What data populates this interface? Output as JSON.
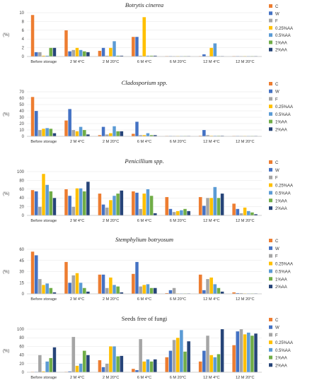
{
  "colors": {
    "C": "#ED7D31",
    "W": "#4472C4",
    "F": "#A5A5A5",
    "0.25%AA": "#FFC000",
    "0.5%AA": "#5B9BD5",
    "1%AA": "#70AD47",
    "2%AA": "#264478"
  },
  "chart_data": [
    {
      "type": "bar",
      "title": "Botrytis cinerea",
      "italic_title": true,
      "ylabel": "(%)",
      "ylim": [
        0,
        10
      ],
      "yticks": [
        0,
        2,
        4,
        6,
        8,
        10
      ],
      "categories": [
        "Before storage",
        "2 M 4°C",
        "2 M 20°C",
        "6 M 4°C",
        "6 M 20°C",
        "12 M 4°C",
        "12 M 20°C"
      ],
      "series": [
        {
          "name": "C",
          "values": [
            9.5,
            6.0,
            1.3,
            4.5,
            0.1,
            0.1,
            0.1
          ]
        },
        {
          "name": "W",
          "values": [
            1.0,
            1.2,
            2.0,
            4.5,
            0.1,
            0.5,
            0.1
          ]
        },
        {
          "name": "F",
          "values": [
            1.0,
            1.5,
            0.2,
            0.2,
            0.1,
            0.1,
            0.1
          ]
        },
        {
          "name": "0.25%AA",
          "values": [
            0.2,
            2.0,
            2.0,
            9.0,
            0.1,
            2.0,
            0.1
          ]
        },
        {
          "name": "0.5%AA",
          "values": [
            0.2,
            1.5,
            3.5,
            0.2,
            0.1,
            3.0,
            0.1
          ]
        },
        {
          "name": "1%AA",
          "values": [
            2.0,
            1.2,
            0.2,
            0.2,
            0.1,
            0.1,
            0.1
          ]
        },
        {
          "name": "2%AA",
          "values": [
            2.0,
            1.0,
            0.2,
            0.2,
            0.1,
            0.1,
            0.1
          ]
        }
      ]
    },
    {
      "type": "bar",
      "title": "Cladosporium spp.",
      "italic_title": true,
      "ylabel": "(%)",
      "ylim": [
        0,
        70
      ],
      "yticks": [
        0,
        10,
        20,
        30,
        40,
        50,
        60,
        70
      ],
      "categories": [
        "Before storage",
        "2 M 4°C",
        "2 M 20°C",
        "6 M 4°C",
        "6 M 20°C",
        "12 M 4°C",
        "12 M 20°C"
      ],
      "series": [
        {
          "name": "C",
          "values": [
            62,
            25,
            2,
            4,
            0.5,
            1,
            0.5
          ]
        },
        {
          "name": "W",
          "values": [
            40,
            43,
            15,
            23,
            0.5,
            10,
            0.5
          ]
        },
        {
          "name": "F",
          "values": [
            10,
            10,
            3,
            2,
            0.5,
            2,
            0.5
          ]
        },
        {
          "name": "0.25%AA",
          "values": [
            12,
            8,
            5,
            2,
            0.5,
            1,
            0.5
          ]
        },
        {
          "name": "0.5%AA",
          "values": [
            13,
            15,
            16,
            5,
            0.5,
            1,
            0.5
          ]
        },
        {
          "name": "1%AA",
          "values": [
            12,
            10,
            8,
            2,
            0.5,
            1,
            0.5
          ]
        },
        {
          "name": "2%AA",
          "values": [
            5,
            3,
            8,
            2,
            0.5,
            1,
            0.5
          ]
        }
      ]
    },
    {
      "type": "bar",
      "title": "Penicillium spp.",
      "italic_title": true,
      "ylabel": "(%)",
      "ylim": [
        0,
        100
      ],
      "yticks": [
        0,
        20,
        40,
        60,
        80,
        100
      ],
      "categories": [
        "Before storage",
        "2 M 4°C",
        "2 M 20°C",
        "6 M 4°C",
        "6 M 20°C",
        "12 M 4°C",
        "12 M 20°C"
      ],
      "series": [
        {
          "name": "C",
          "values": [
            58,
            60,
            50,
            55,
            42,
            42,
            27
          ]
        },
        {
          "name": "W",
          "values": [
            55,
            45,
            25,
            52,
            15,
            22,
            15
          ]
        },
        {
          "name": "F",
          "values": [
            20,
            20,
            18,
            15,
            8,
            40,
            5
          ]
        },
        {
          "name": "0.25%AA",
          "values": [
            95,
            62,
            35,
            50,
            10,
            40,
            18
          ]
        },
        {
          "name": "0.5%AA",
          "values": [
            70,
            62,
            45,
            60,
            12,
            65,
            10
          ]
        },
        {
          "name": "1%AA",
          "values": [
            55,
            55,
            50,
            45,
            15,
            40,
            7
          ]
        },
        {
          "name": "2%AA",
          "values": [
            40,
            77,
            57,
            5,
            10,
            50,
            3
          ]
        }
      ]
    },
    {
      "type": "bar",
      "title": "Stemphylium botryosum",
      "italic_title": true,
      "ylabel": "(%)",
      "ylim": [
        0,
        60
      ],
      "yticks": [
        0,
        15,
        30,
        45,
        60
      ],
      "categories": [
        "Before storage",
        "2 M 4°C",
        "2 M 20°C",
        "6 M 4°C",
        "6 M 20°C",
        "12 M 4°C",
        "12 M 20°C"
      ],
      "series": [
        {
          "name": "C",
          "values": [
            57,
            43,
            26,
            27,
            1,
            26,
            2
          ]
        },
        {
          "name": "W",
          "values": [
            52,
            15,
            26,
            43,
            5,
            5,
            1
          ]
        },
        {
          "name": "F",
          "values": [
            20,
            25,
            8,
            10,
            8,
            20,
            1
          ]
        },
        {
          "name": "0.25%AA",
          "values": [
            12,
            28,
            22,
            12,
            0.5,
            22,
            0.5
          ]
        },
        {
          "name": "0.5%AA",
          "values": [
            14,
            15,
            12,
            13,
            0.5,
            13,
            0.5
          ]
        },
        {
          "name": "1%AA",
          "values": [
            8,
            8,
            10,
            8,
            0.5,
            8,
            0.5
          ]
        },
        {
          "name": "2%AA",
          "values": [
            2,
            3,
            2,
            8,
            0.5,
            3,
            0.5
          ]
        }
      ]
    },
    {
      "type": "bar",
      "title": "Seeds free of fungi",
      "italic_title": false,
      "ylabel": "(%)",
      "ylim": [
        0,
        100
      ],
      "yticks": [
        0,
        20,
        40,
        60,
        80,
        100
      ],
      "categories": [
        "Before storage",
        "2 M 4°C",
        "2 M 20°C",
        "6 M 4°C",
        "6 M 20°C",
        "12 M 4°C",
        "12 M 20°C"
      ],
      "series": [
        {
          "name": "C",
          "values": [
            1,
            1,
            28,
            8,
            35,
            25,
            63
          ]
        },
        {
          "name": "W",
          "values": [
            1,
            2,
            12,
            5,
            50,
            50,
            95
          ]
        },
        {
          "name": "F",
          "values": [
            40,
            82,
            20,
            77,
            75,
            85,
            100
          ]
        },
        {
          "name": "0.25%AA",
          "values": [
            2,
            15,
            60,
            25,
            80,
            40,
            88
          ]
        },
        {
          "name": "0.5%AA",
          "values": [
            25,
            20,
            60,
            30,
            98,
            35,
            92
          ]
        },
        {
          "name": "1%AA",
          "values": [
            33,
            50,
            37,
            25,
            48,
            42,
            85
          ]
        },
        {
          "name": "2%AA",
          "values": [
            58,
            40,
            38,
            30,
            72,
            100,
            90
          ]
        }
      ]
    }
  ]
}
